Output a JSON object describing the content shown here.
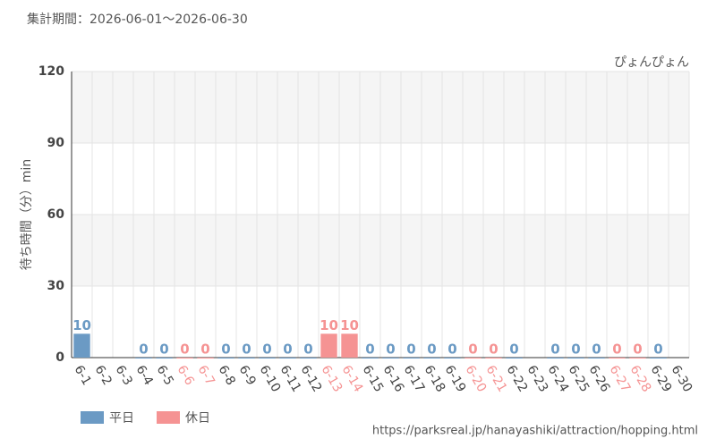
{
  "chart_data": {
    "type": "bar",
    "title": "集計期間：2026-06-01～2026-06-30",
    "subtitle": "ぴょんぴょん",
    "y_label": "待ち時間（分）min",
    "source": "https://parksreal.jp/hanayashiki/attraction/hopping.html",
    "categories": [
      "6-1",
      "6-2",
      "6-3",
      "6-4",
      "6-5",
      "6-6",
      "6-7",
      "6-8",
      "6-9",
      "6-10",
      "6-11",
      "6-12",
      "6-13",
      "6-14",
      "6-15",
      "6-16",
      "6-17",
      "6-18",
      "6-19",
      "6-20",
      "6-21",
      "6-22",
      "6-23",
      "6-24",
      "6-25",
      "6-26",
      "6-27",
      "6-28",
      "6-29",
      "6-30"
    ],
    "series": [
      {
        "name": "平日",
        "color": "#6b9ac4",
        "values": [
          10,
          null,
          null,
          0,
          0,
          null,
          null,
          0,
          0,
          0,
          0,
          0,
          null,
          null,
          0,
          0,
          0,
          0,
          0,
          null,
          null,
          0,
          null,
          0,
          0,
          0,
          null,
          null,
          0,
          null
        ]
      },
      {
        "name": "休日",
        "color": "#f59393",
        "values": [
          null,
          null,
          null,
          null,
          null,
          0,
          0,
          null,
          null,
          null,
          null,
          null,
          10,
          10,
          null,
          null,
          null,
          null,
          null,
          0,
          0,
          null,
          null,
          null,
          null,
          null,
          0,
          0,
          null,
          null
        ]
      }
    ],
    "ylim": [
      0,
      120
    ],
    "yticks": [
      0,
      30,
      60,
      90,
      120
    ],
    "grid": true,
    "legend": "bottom-left"
  }
}
